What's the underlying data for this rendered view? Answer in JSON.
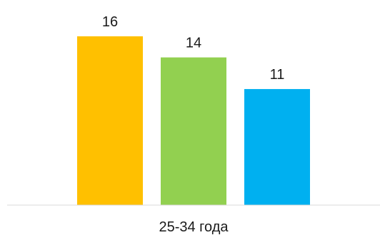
{
  "chart_data": {
    "type": "bar",
    "categories": [
      "25-34 года"
    ],
    "series": [
      {
        "values": [
          16
        ],
        "color": "#FFC000"
      },
      {
        "values": [
          14
        ],
        "color": "#92D050"
      },
      {
        "values": [
          11
        ],
        "color": "#00B0F0"
      }
    ],
    "title": "",
    "xlabel": "",
    "ylabel": "",
    "ylim": [
      0,
      16
    ],
    "grid": false,
    "legend": "none",
    "axis_color": "#D9D9D9"
  }
}
